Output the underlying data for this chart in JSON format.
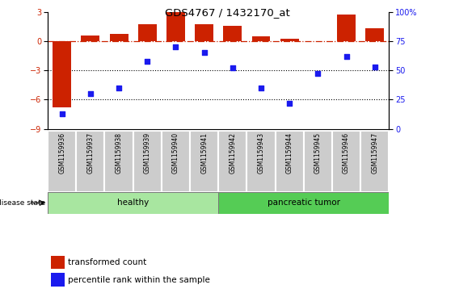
{
  "title": "GDS4767 / 1432170_at",
  "samples": [
    "GSM1159936",
    "GSM1159937",
    "GSM1159938",
    "GSM1159939",
    "GSM1159940",
    "GSM1159941",
    "GSM1159942",
    "GSM1159943",
    "GSM1159944",
    "GSM1159945",
    "GSM1159946",
    "GSM1159947"
  ],
  "transformed_count": [
    -6.8,
    0.55,
    0.75,
    1.7,
    2.95,
    1.7,
    1.55,
    0.5,
    0.2,
    -0.05,
    2.7,
    1.3
  ],
  "percentile_rank": [
    13,
    30,
    35,
    58,
    70,
    65,
    52,
    35,
    22,
    47,
    62,
    53
  ],
  "disease_state": [
    "healthy",
    "healthy",
    "healthy",
    "healthy",
    "healthy",
    "healthy",
    "pancreatic tumor",
    "pancreatic tumor",
    "pancreatic tumor",
    "pancreatic tumor",
    "pancreatic tumor",
    "pancreatic tumor"
  ],
  "bar_color": "#cc2200",
  "dot_color": "#1a1aee",
  "left_ylim": [
    -9,
    3
  ],
  "left_yticks": [
    -9,
    -6,
    -3,
    0,
    3
  ],
  "right_yticks": [
    0,
    25,
    50,
    75,
    100
  ],
  "right_yticklabels": [
    "0",
    "25",
    "50",
    "75",
    "100%"
  ],
  "dotted_lines": [
    -3,
    -6
  ],
  "healthy_color": "#a8e6a0",
  "tumor_color": "#55cc55",
  "disease_state_label": "disease state",
  "legend_bar_label": "transformed count",
  "legend_dot_label": "percentile rank within the sample",
  "label_bg_color": "#cccccc",
  "label_edge_color": "#ffffff"
}
